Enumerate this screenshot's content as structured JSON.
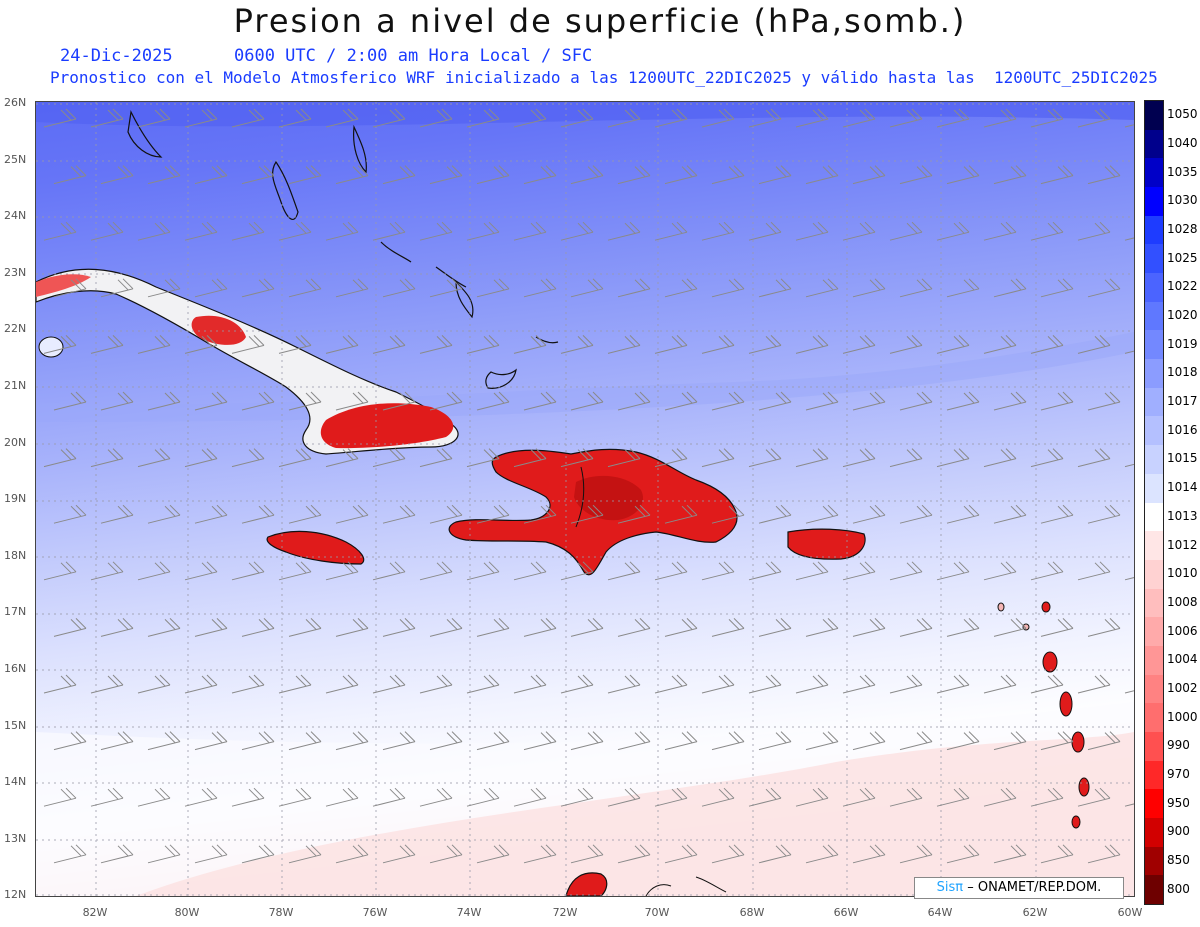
{
  "header": {
    "title": "Presion a nivel de superficie (hPa,somb.)",
    "date_line": "24-Dic-2025      0600 UTC / 2:00 am Hora Local / SFC",
    "model_line": "Pronostico con el Modelo Atmosferico WRF inicializado a las 1200UTC_22DIC2025 y válido hasta las  1200UTC_25DIC2025"
  },
  "map": {
    "lat_labels": [
      "26N",
      "25N",
      "24N",
      "23N",
      "22N",
      "21N",
      "20N",
      "19N",
      "18N",
      "17N",
      "16N",
      "15N",
      "14N",
      "13N",
      "12N"
    ],
    "lon_labels": [
      "82W",
      "80W",
      "78W",
      "76W",
      "74W",
      "72W",
      "70W",
      "68W",
      "66W",
      "64W",
      "62W",
      "60W"
    ],
    "land_color": "#e01b1b",
    "wind_barb_color": "#8a8a8a"
  },
  "colorbar": {
    "levels": [
      "1050",
      "1040",
      "1035",
      "1030",
      "1028",
      "1025",
      "1022",
      "1020",
      "1019",
      "1018",
      "1017",
      "1016",
      "1015",
      "1014",
      "1013",
      "1012",
      "1010",
      "1008",
      "1006",
      "1004",
      "1002",
      "1000",
      "990",
      "970",
      "950",
      "900",
      "850",
      "800"
    ],
    "colors": [
      "#000050",
      "#00008c",
      "#0000c8",
      "#0000ff",
      "#1e3cff",
      "#3250ff",
      "#4b64ff",
      "#5f78ff",
      "#7388ff",
      "#8b9cff",
      "#a0afff",
      "#b4c0ff",
      "#c8d2ff",
      "#dce4ff",
      "#ffffff",
      "#ffe6e6",
      "#ffd2d2",
      "#ffbebe",
      "#ffaaaa",
      "#ff9696",
      "#ff8282",
      "#ff6e6e",
      "#ff5050",
      "#ff2828",
      "#ff0000",
      "#d20000",
      "#a00000",
      "#6e0000"
    ]
  },
  "credit": {
    "brand": "Sisπ",
    "text": "– ONAMET/REP.DOM."
  }
}
